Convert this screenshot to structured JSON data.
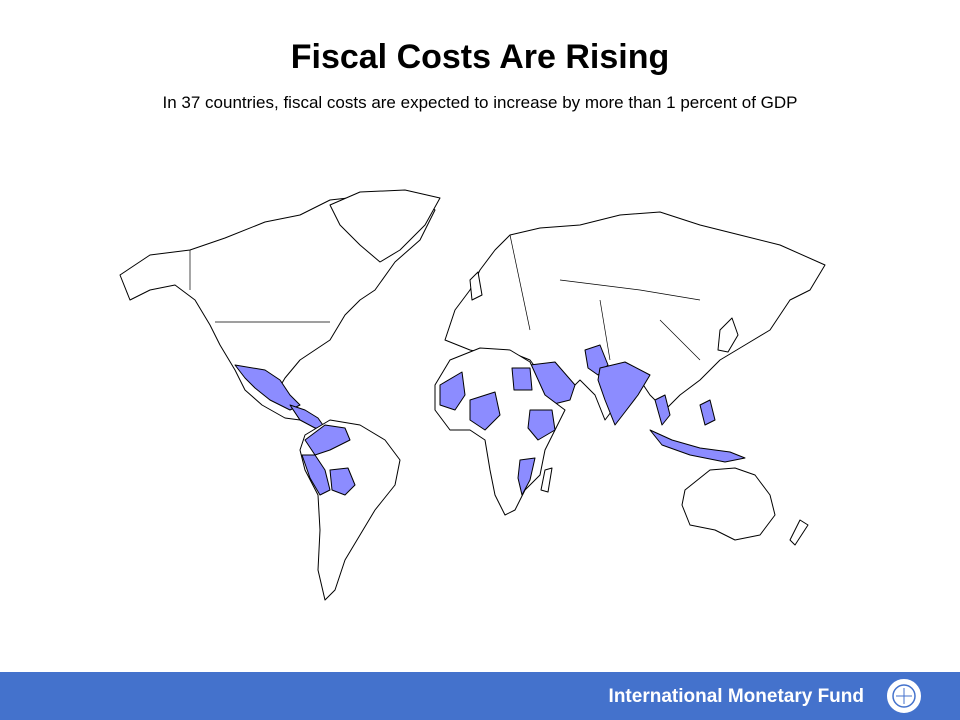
{
  "header": {
    "title": "Fiscal Costs Are Rising",
    "subtitle": "In 37 countries, fiscal costs are expected to increase by more than 1 percent of GDP"
  },
  "footer": {
    "organization": "International Monetary Fund"
  }
}
